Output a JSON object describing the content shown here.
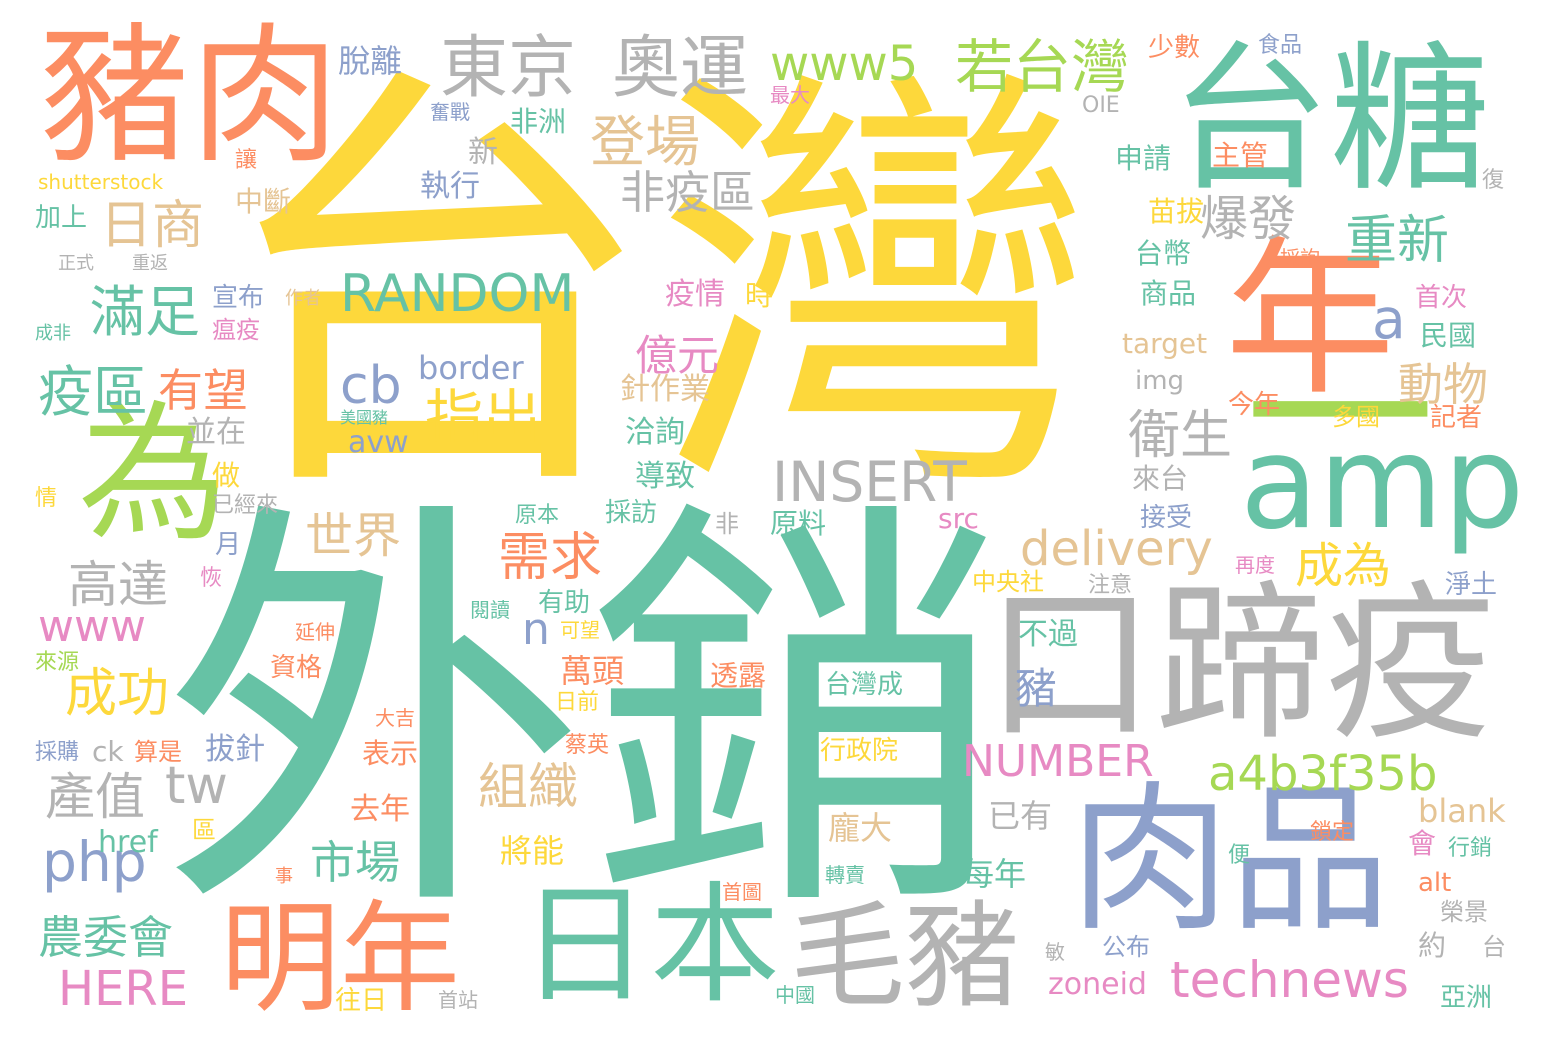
{
  "palette": {
    "yellow": "#fdd83b",
    "teal": "#66c2a5",
    "orange": "#fc8d62",
    "blue": "#8da0cb",
    "pink": "#e78ac3",
    "green": "#a6d854",
    "tan": "#e5c494",
    "gray": "#b3b3b3"
  },
  "words": [
    {
      "text": "台灣",
      "color": "yellow"
    },
    {
      "text": "外銷",
      "color": "teal"
    },
    {
      "text": "豬肉",
      "color": "orange"
    },
    {
      "text": "台糖",
      "color": "teal"
    },
    {
      "text": "口蹄疫",
      "color": "gray"
    },
    {
      "text": "肉品",
      "color": "blue"
    },
    {
      "text": "年",
      "color": "orange"
    },
    {
      "text": "為",
      "color": "green"
    },
    {
      "text": "amp",
      "color": "teal"
    },
    {
      "text": "日本",
      "color": "teal"
    },
    {
      "text": "毛豬",
      "color": "gray"
    },
    {
      "text": "明年",
      "color": "orange"
    },
    {
      "text": "東京",
      "color": "gray"
    },
    {
      "text": "奧運",
      "color": "gray"
    },
    {
      "text": "www5",
      "color": "green"
    },
    {
      "text": "若台灣",
      "color": "green"
    },
    {
      "text": "一",
      "color": "green"
    },
    {
      "text": "日商",
      "color": "tan"
    },
    {
      "text": "登場",
      "color": "tan"
    },
    {
      "text": "非疫區",
      "color": "gray"
    },
    {
      "text": "爆發",
      "color": "gray"
    },
    {
      "text": "重新",
      "color": "teal"
    },
    {
      "text": "RANDOM",
      "color": "teal"
    },
    {
      "text": "滿足",
      "color": "teal"
    },
    {
      "text": "疫區",
      "color": "teal"
    },
    {
      "text": "有望",
      "color": "orange"
    },
    {
      "text": "cb",
      "color": "blue"
    },
    {
      "text": "border",
      "color": "blue"
    },
    {
      "text": "avw",
      "color": "blue"
    },
    {
      "text": "美國豬",
      "color": "teal"
    },
    {
      "text": "指出",
      "color": "yellow"
    },
    {
      "text": "億元",
      "color": "pink"
    },
    {
      "text": "a",
      "color": "blue"
    },
    {
      "text": "動物",
      "color": "tan"
    },
    {
      "text": "衛生",
      "color": "gray"
    },
    {
      "text": "INSERT",
      "color": "gray"
    },
    {
      "text": "delivery",
      "color": "tan"
    },
    {
      "text": "需求",
      "color": "orange"
    },
    {
      "text": "世界",
      "color": "tan"
    },
    {
      "text": "成為",
      "color": "yellow"
    },
    {
      "text": "高達",
      "color": "gray"
    },
    {
      "text": "www",
      "color": "pink"
    },
    {
      "text": "成功",
      "color": "yellow"
    },
    {
      "text": "n",
      "color": "blue"
    },
    {
      "text": "NUMBER",
      "color": "pink"
    },
    {
      "text": "a4b3f35b",
      "color": "green"
    },
    {
      "text": "tw",
      "color": "gray"
    },
    {
      "text": "產值",
      "color": "gray"
    },
    {
      "text": "組織",
      "color": "tan"
    },
    {
      "text": "php",
      "color": "blue"
    },
    {
      "text": "市場",
      "color": "teal"
    },
    {
      "text": "農委會",
      "color": "teal"
    },
    {
      "text": "HERE",
      "color": "pink"
    },
    {
      "text": "technews",
      "color": "pink"
    },
    {
      "text": "zoneid",
      "color": "pink"
    },
    {
      "text": "豬",
      "color": "blue"
    },
    {
      "text": "不過",
      "color": "teal"
    },
    {
      "text": "萬頭",
      "color": "orange"
    },
    {
      "text": "台灣成",
      "color": "teal"
    },
    {
      "text": "行政院",
      "color": "yellow"
    },
    {
      "text": "龐大",
      "color": "tan"
    },
    {
      "text": "每年",
      "color": "teal"
    },
    {
      "text": "將能",
      "color": "yellow"
    },
    {
      "text": "已有",
      "color": "gray"
    },
    {
      "text": "blank",
      "color": "tan"
    },
    {
      "text": "脫離",
      "color": "blue"
    },
    {
      "text": "少數",
      "color": "orange"
    },
    {
      "text": "食品",
      "color": "blue"
    },
    {
      "text": "最大",
      "color": "pink"
    },
    {
      "text": "奮戰",
      "color": "blue"
    },
    {
      "text": "非洲",
      "color": "teal"
    },
    {
      "text": "OIE",
      "color": "gray"
    },
    {
      "text": "新",
      "color": "gray"
    },
    {
      "text": "申請",
      "color": "teal"
    },
    {
      "text": "主管",
      "color": "orange"
    },
    {
      "text": "讓",
      "color": "orange"
    },
    {
      "text": "shutterstock",
      "color": "yellow"
    },
    {
      "text": "中斷",
      "color": "tan"
    },
    {
      "text": "執行",
      "color": "blue"
    },
    {
      "text": "加上",
      "color": "teal"
    },
    {
      "text": "苗拔",
      "color": "yellow"
    },
    {
      "text": "台幣",
      "color": "teal"
    },
    {
      "text": "商品",
      "color": "teal"
    },
    {
      "text": "採詢",
      "color": "orange"
    },
    {
      "text": "正式",
      "color": "gray"
    },
    {
      "text": "重返",
      "color": "gray"
    },
    {
      "text": "作者",
      "color": "tan"
    },
    {
      "text": "宣布",
      "color": "blue"
    },
    {
      "text": "瘟疫",
      "color": "pink"
    },
    {
      "text": "疫情",
      "color": "pink"
    },
    {
      "text": "時",
      "color": "yellow"
    },
    {
      "text": "首次",
      "color": "pink"
    },
    {
      "text": "成非",
      "color": "teal"
    },
    {
      "text": "target",
      "color": "tan"
    },
    {
      "text": "民國",
      "color": "teal"
    },
    {
      "text": "img",
      "color": "gray"
    },
    {
      "text": "針作業",
      "color": "tan"
    },
    {
      "text": "今年",
      "color": "orange"
    },
    {
      "text": "多國",
      "color": "yellow"
    },
    {
      "text": "記者",
      "color": "orange"
    },
    {
      "text": "並在",
      "color": "gray"
    },
    {
      "text": "洽詢",
      "color": "teal"
    },
    {
      "text": "做",
      "color": "yellow"
    },
    {
      "text": "導致",
      "color": "teal"
    },
    {
      "text": "來台",
      "color": "gray"
    },
    {
      "text": "情",
      "color": "yellow"
    },
    {
      "text": "已經來",
      "color": "gray"
    },
    {
      "text": "原本",
      "color": "teal"
    },
    {
      "text": "採訪",
      "color": "teal"
    },
    {
      "text": "src",
      "color": "pink"
    },
    {
      "text": "接受",
      "color": "blue"
    },
    {
      "text": "月",
      "color": "blue"
    },
    {
      "text": "非",
      "color": "gray"
    },
    {
      "text": "原料",
      "color": "teal"
    },
    {
      "text": "恢",
      "color": "pink"
    },
    {
      "text": "中央社",
      "color": "yellow"
    },
    {
      "text": "再度",
      "color": "pink"
    },
    {
      "text": "注意",
      "color": "gray"
    },
    {
      "text": "淨土",
      "color": "blue"
    },
    {
      "text": "閱讀",
      "color": "teal"
    },
    {
      "text": "有助",
      "color": "teal"
    },
    {
      "text": "可望",
      "color": "yellow"
    },
    {
      "text": "延伸",
      "color": "orange"
    },
    {
      "text": "來源",
      "color": "green"
    },
    {
      "text": "資格",
      "color": "orange"
    },
    {
      "text": "透露",
      "color": "orange"
    },
    {
      "text": "大吉",
      "color": "orange"
    },
    {
      "text": "日前",
      "color": "yellow"
    },
    {
      "text": "採購",
      "color": "blue"
    },
    {
      "text": "ck",
      "color": "gray"
    },
    {
      "text": "算是",
      "color": "orange"
    },
    {
      "text": "拔針",
      "color": "blue"
    },
    {
      "text": "蔡英",
      "color": "orange"
    },
    {
      "text": "表示",
      "color": "orange"
    },
    {
      "text": "去年",
      "color": "orange"
    },
    {
      "text": "href",
      "color": "teal"
    },
    {
      "text": "區",
      "color": "yellow"
    },
    {
      "text": "鎖定",
      "color": "orange"
    },
    {
      "text": "會",
      "color": "pink"
    },
    {
      "text": "行銷",
      "color": "teal"
    },
    {
      "text": "便",
      "color": "teal"
    },
    {
      "text": "事",
      "color": "orange"
    },
    {
      "text": "轉賣",
      "color": "teal"
    },
    {
      "text": "首圖",
      "color": "orange"
    },
    {
      "text": "alt",
      "color": "orange"
    },
    {
      "text": "榮景",
      "color": "gray"
    },
    {
      "text": "約",
      "color": "gray"
    },
    {
      "text": "台",
      "color": "gray"
    },
    {
      "text": "敏",
      "color": "gray"
    },
    {
      "text": "公布",
      "color": "blue"
    },
    {
      "text": "中國",
      "color": "teal"
    },
    {
      "text": "往日",
      "color": "yellow"
    },
    {
      "text": "首站",
      "color": "gray"
    },
    {
      "text": "亞洲",
      "color": "teal"
    },
    {
      "text": "復",
      "color": "gray"
    }
  ]
}
